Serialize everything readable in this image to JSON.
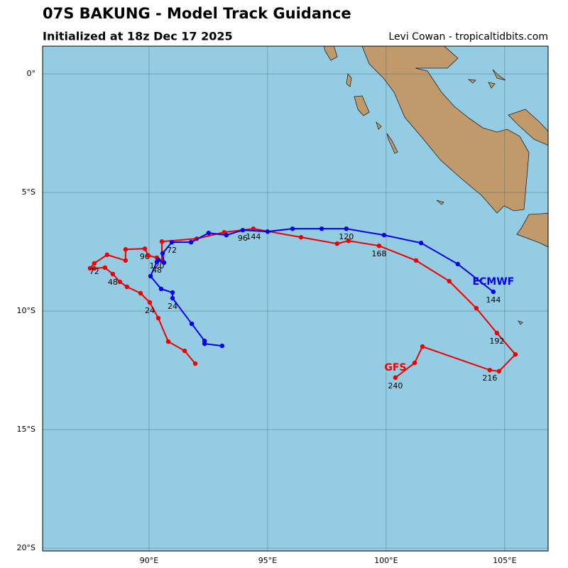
{
  "chart_data": {
    "type": "track",
    "title": "07S BAKUNG - Model Track Guidance",
    "subtitle": "Initialized at 18z Dec 17 2025",
    "credit": "Levi Cowan - tropicaltidbits.com",
    "xlim": [
      85.51,
      106.83
    ],
    "ylim": [
      -20.12,
      1.17
    ],
    "xticks": [
      {
        "value": 90,
        "label": "90°E"
      },
      {
        "value": 95,
        "label": "95°E"
      },
      {
        "value": 100,
        "label": "100°E"
      },
      {
        "value": 105,
        "label": "105°E"
      }
    ],
    "yticks": [
      {
        "value": 0,
        "label": "0°"
      },
      {
        "value": -5,
        "label": "5°S"
      },
      {
        "value": -10,
        "label": "10°S"
      },
      {
        "value": -15,
        "label": "15°S"
      },
      {
        "value": -20,
        "label": "20°S"
      }
    ],
    "grid": true,
    "series": [
      {
        "name": "GFS",
        "color": "#ee0000",
        "x": [
          91.95,
          91.5,
          90.81,
          90.39,
          90.03,
          89.64,
          89.07,
          88.77,
          88.47,
          88.14,
          87.69,
          87.51,
          87.69,
          88.23,
          89.01,
          89.01,
          89.82,
          89.97,
          90.33,
          90.54,
          90.54,
          92.01,
          93.17,
          94.4,
          96.41,
          97.93,
          98.41,
          99.7,
          101.26,
          102.66,
          103.8,
          104.67,
          105.45,
          104.76,
          104.37,
          101.53,
          101.2,
          100.39
        ],
        "values": [
          -12.22,
          -11.68,
          -11.29,
          -10.3,
          -9.64,
          -9.25,
          -8.98,
          -8.77,
          -8.44,
          -8.17,
          -8.2,
          -8.2,
          -7.99,
          -7.63,
          -7.87,
          -7.4,
          -7.37,
          -7.66,
          -7.75,
          -7.9,
          -7.07,
          -6.95,
          -6.68,
          -6.53,
          -6.89,
          -7.16,
          -7.04,
          -7.25,
          -7.87,
          -8.74,
          -9.88,
          -10.93,
          -11.83,
          -12.54,
          -12.49,
          -11.5,
          -12.19,
          -12.81
        ],
        "labels": [
          null,
          null,
          null,
          null,
          "24",
          null,
          null,
          null,
          "48",
          null,
          null,
          null,
          "72",
          null,
          null,
          null,
          "96",
          null,
          "120",
          null,
          null,
          null,
          null,
          "144",
          null,
          null,
          null,
          "168",
          null,
          null,
          null,
          "192",
          null,
          null,
          "216",
          null,
          null,
          "240"
        ]
      },
      {
        "name": "ECMWF",
        "color": "#0000ee",
        "x": [
          93.08,
          92.34,
          92.34,
          91.8,
          90.99,
          90.99,
          90.51,
          90.06,
          90.33,
          90.39,
          90.63,
          90.57,
          90.96,
          91.77,
          92.51,
          93.26,
          93.95,
          95.0,
          96.05,
          97.28,
          98.32,
          99.91,
          101.47,
          103.02,
          104.52
        ],
        "values": [
          -11.47,
          -11.38,
          -11.26,
          -10.54,
          -9.46,
          -9.22,
          -9.07,
          -8.53,
          -7.93,
          -7.84,
          -7.96,
          -7.57,
          -7.1,
          -7.1,
          -6.71,
          -6.8,
          -6.59,
          -6.65,
          -6.53,
          -6.53,
          -6.53,
          -6.8,
          -7.13,
          -8.02,
          -9.19
        ],
        "labels": [
          null,
          null,
          null,
          null,
          "24",
          null,
          null,
          null,
          "48",
          null,
          null,
          null,
          "72",
          null,
          null,
          null,
          "96",
          null,
          null,
          null,
          "120",
          null,
          null,
          null,
          "144"
        ]
      }
    ]
  }
}
